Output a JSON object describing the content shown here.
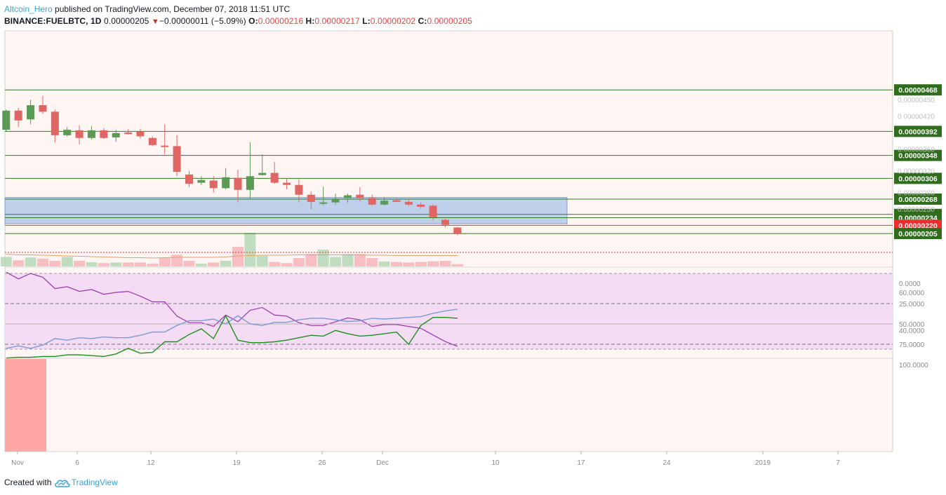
{
  "header": {
    "author": "Altcoin_Hero",
    "published": "published on TradingView.com, December 07, 2018 11:51 UTC",
    "symbol": "BINANCE:FUELBTC, 1D",
    "last": "0.00000205",
    "change_arrow": "▼",
    "change": "−0.00000011 (−5.09%)",
    "o_label": "O:",
    "o_value": "0.00000216",
    "h_label": "H:",
    "h_value": "0.00000217",
    "l_label": "L:",
    "l_value": "0.00000202",
    "c_label": "C:",
    "c_value": "0.00000205"
  },
  "footer": {
    "created_with": "Created with",
    "brand": "TradingView",
    "logo_icon": "tradingview-cloud-icon"
  },
  "colors": {
    "up": "#5b9a55",
    "down": "#e06666",
    "level_line": "#2f7d1e",
    "label_bg": "#2f6d1c",
    "current_label_bg": "#ef2c2c",
    "zone_fill": "#b3c9e8",
    "rsi_band": "#f5dcf5",
    "rsi_line": "#9a34ad",
    "stoch_k": "#1d8f1d",
    "stoch_d": "#7a9ad6",
    "stoch_band": "#dcd7d7",
    "panel_bg": "#fff5f3",
    "highlight": "#ff9e9e"
  },
  "chart_data": [
    {
      "type": "candlestick",
      "title": "",
      "y_ticks": [
        "0.00000450",
        "0.00000420",
        "0.00000360",
        "0.00000320",
        "0.00000280",
        "0.00000250"
      ],
      "level_labels": [
        "0.00000468",
        "0.00000392",
        "0.00000348",
        "0.00000306",
        "0.00000268",
        "0.00000240",
        "0.00000234"
      ],
      "current_price_label": "0.00000220",
      "last_price_label": "0.00000205",
      "zone": {
        "from": 2.23e-06,
        "to": 2.71e-06
      },
      "x_ticks": [
        "Nov",
        "6",
        "12",
        "19",
        "26",
        "Dec",
        "10",
        "17",
        "24",
        "2019",
        "7"
      ],
      "candles": [
        {
          "o": 3.95e-06,
          "h": 4.32e-06,
          "l": 3.92e-06,
          "c": 4.3e-06
        },
        {
          "o": 4.3e-06,
          "h": 4.35e-06,
          "l": 4e-06,
          "c": 4.12e-06
        },
        {
          "o": 4.14e-06,
          "h": 4.5e-06,
          "l": 4.05e-06,
          "c": 4.4e-06
        },
        {
          "o": 4.4e-06,
          "h": 4.57e-06,
          "l": 4.24e-06,
          "c": 4.28e-06
        },
        {
          "o": 4.28e-06,
          "h": 4.32e-06,
          "l": 3.72e-06,
          "c": 3.85e-06
        },
        {
          "o": 3.85e-06,
          "h": 4e-06,
          "l": 3.83e-06,
          "c": 3.95e-06
        },
        {
          "o": 3.94e-06,
          "h": 4.03e-06,
          "l": 3.68e-06,
          "c": 3.8e-06
        },
        {
          "o": 3.8e-06,
          "h": 4.02e-06,
          "l": 3.77e-06,
          "c": 3.94e-06
        },
        {
          "o": 3.94e-06,
          "h": 3.98e-06,
          "l": 3.78e-06,
          "c": 3.8e-06
        },
        {
          "o": 3.81e-06,
          "h": 3.95e-06,
          "l": 3.73e-06,
          "c": 3.89e-06
        },
        {
          "o": 3.9e-06,
          "h": 3.96e-06,
          "l": 3.86e-06,
          "c": 3.87e-06
        },
        {
          "o": 3.92e-06,
          "h": 3.97e-06,
          "l": 3.79e-06,
          "c": 3.83e-06
        },
        {
          "o": 3.8e-06,
          "h": 3.83e-06,
          "l": 3.65e-06,
          "c": 3.67e-06
        },
        {
          "o": 3.66e-06,
          "h": 4.05e-06,
          "l": 3.5e-06,
          "c": 3.65e-06
        },
        {
          "o": 3.65e-06,
          "h": 3.85e-06,
          "l": 3.1e-06,
          "c": 3.18e-06
        },
        {
          "o": 3.13e-06,
          "h": 3.2e-06,
          "l": 2.9e-06,
          "c": 2.96e-06
        },
        {
          "o": 2.98e-06,
          "h": 3.1e-06,
          "l": 2.94e-06,
          "c": 3.03e-06
        },
        {
          "o": 3.02e-06,
          "h": 3.1e-06,
          "l": 2.8e-06,
          "c": 2.88e-06
        },
        {
          "o": 2.88e-06,
          "h": 3.25e-06,
          "l": 2.86e-06,
          "c": 3.08e-06
        },
        {
          "o": 3.07e-06,
          "h": 3.22e-06,
          "l": 2.62e-06,
          "c": 2.85e-06
        },
        {
          "o": 2.85e-06,
          "h": 3.72e-06,
          "l": 2.67e-06,
          "c": 3.1e-06
        },
        {
          "o": 3.12e-06,
          "h": 3.5e-06,
          "l": 3.11e-06,
          "c": 3.16e-06
        },
        {
          "o": 3.16e-06,
          "h": 3.36e-06,
          "l": 2.96e-06,
          "c": 2.98e-06
        },
        {
          "o": 2.98e-06,
          "h": 3.06e-06,
          "l": 2.86e-06,
          "c": 2.94e-06
        },
        {
          "o": 2.94e-06,
          "h": 3.05e-06,
          "l": 2.62e-06,
          "c": 2.76e-06
        },
        {
          "o": 2.76e-06,
          "h": 2.82e-06,
          "l": 2.5e-06,
          "c": 2.63e-06
        },
        {
          "o": 2.6e-06,
          "h": 2.91e-06,
          "l": 2.57e-06,
          "c": 2.62e-06
        },
        {
          "o": 2.62e-06,
          "h": 2.78e-06,
          "l": 2.58e-06,
          "c": 2.68e-06
        },
        {
          "o": 2.7e-06,
          "h": 2.78e-06,
          "l": 2.62e-06,
          "c": 2.75e-06
        },
        {
          "o": 2.76e-06,
          "h": 2.9e-06,
          "l": 2.64e-06,
          "c": 2.7e-06
        },
        {
          "o": 2.7e-06,
          "h": 2.76e-06,
          "l": 2.56e-06,
          "c": 2.58e-06
        },
        {
          "o": 2.58e-06,
          "h": 2.72e-06,
          "l": 2.56e-06,
          "c": 2.65e-06
        },
        {
          "o": 2.66e-06,
          "h": 2.7e-06,
          "l": 2.62e-06,
          "c": 2.63e-06
        },
        {
          "o": 2.63e-06,
          "h": 2.67e-06,
          "l": 2.55e-06,
          "c": 2.58e-06
        },
        {
          "o": 2.58e-06,
          "h": 2.62e-06,
          "l": 2.51e-06,
          "c": 2.54e-06
        },
        {
          "o": 2.56e-06,
          "h": 2.58e-06,
          "l": 2.3e-06,
          "c": 2.35e-06
        },
        {
          "o": 2.3e-06,
          "h": 2.32e-06,
          "l": 2.16e-06,
          "c": 2.21e-06
        },
        {
          "o": 2.16e-06,
          "h": 2.17e-06,
          "l": 2.02e-06,
          "c": 2.05e-06
        }
      ],
      "volume": [
        34,
        22,
        32,
        28,
        20,
        34,
        20,
        15,
        12,
        14,
        14,
        14,
        10,
        30,
        42,
        20,
        10,
        14,
        20,
        70,
        120,
        38,
        16,
        12,
        30,
        44,
        60,
        34,
        44,
        44,
        30,
        18,
        16,
        14,
        16,
        18,
        20,
        8
      ],
      "moving_average": [
        35,
        33,
        33,
        32,
        31,
        30,
        29,
        28,
        27,
        26,
        25,
        25,
        24,
        25,
        26,
        26,
        26,
        26,
        27,
        30,
        31,
        32,
        32,
        32,
        33,
        33,
        33,
        33,
        33,
        33,
        32,
        32,
        31,
        31,
        31,
        31,
        31,
        31
      ]
    },
    {
      "type": "line",
      "title": "",
      "y_ticks": [
        "60.0000",
        "40.0000"
      ],
      "band": [
        30,
        70
      ],
      "series": [
        {
          "values": [
            70.7,
            67.1,
            70.0,
            68.0,
            62.0,
            63.0,
            60.5,
            61.5,
            59.0,
            60.0,
            60.5,
            58.0,
            55.0,
            55.0,
            47.5,
            44.0,
            44.0,
            42.0,
            48.0,
            44.5,
            50.5,
            52.0,
            48.0,
            47.5,
            44.0,
            42.5,
            42.5,
            44.5,
            46.5,
            45.5,
            42.0,
            43.0,
            43.0,
            42.0,
            41.0,
            37.5,
            34.0,
            31.5
          ]
        }
      ]
    },
    {
      "type": "line",
      "title": "",
      "y_ticks": [
        "100.0000",
        "75.0000",
        "50.0000",
        "25.0000",
        "0.0000"
      ],
      "band": [
        25,
        75
      ],
      "series": [
        {
          "values": [
            92,
            91,
            91,
            90,
            90,
            88,
            88,
            89,
            90,
            87,
            80,
            86,
            85,
            72,
            72,
            63,
            56,
            68,
            40,
            70,
            73,
            73,
            72,
            70,
            67,
            64,
            65,
            58,
            62,
            65,
            64,
            62,
            60,
            75,
            52,
            42,
            42,
            43
          ]
        },
        {
          "values": [
            80,
            77,
            80,
            76,
            68,
            70,
            67,
            68,
            66,
            67,
            67,
            64,
            60,
            60,
            52,
            46,
            46,
            44,
            50,
            40,
            50,
            52,
            48,
            48,
            45,
            43,
            43,
            45,
            47,
            46,
            43,
            44,
            43,
            42,
            41,
            37,
            34,
            32
          ]
        }
      ]
    }
  ]
}
